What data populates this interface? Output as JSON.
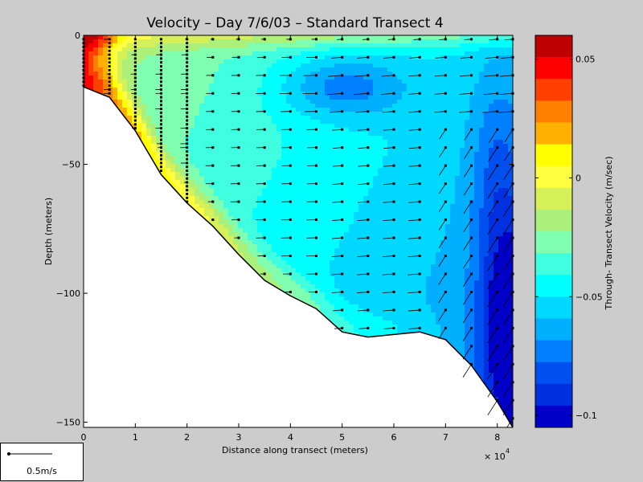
{
  "chart_data": {
    "type": "heatmap",
    "title": "Velocity – Day 7/6/03 – Standard Transect 4",
    "xlabel": "Distance along transect (meters)",
    "ylabel": "Depth (meters)",
    "x_multiplier_label": "× 10",
    "x_multiplier_exponent": "4",
    "xlim": [
      0,
      83000
    ],
    "ylim": [
      -152,
      0
    ],
    "x_ticks": [
      "0",
      "1",
      "2",
      "3",
      "4",
      "5",
      "6",
      "7",
      "8"
    ],
    "y_ticks": [
      "0",
      "−50",
      "−100",
      "−150"
    ],
    "colorbar": {
      "label": "Through- Transect Velocity (m/sec)",
      "range": [
        -0.105,
        0.06
      ],
      "ticks": [
        "0.05",
        "0",
        "−0.05",
        "−0.1"
      ],
      "colors": [
        "#bf0000",
        "#ff0000",
        "#ff4000",
        "#ff8000",
        "#ffb000",
        "#ffff00",
        "#ffff40",
        "#d6f05a",
        "#aaf07a",
        "#80ffb0",
        "#40ffe0",
        "#00ffff",
        "#00d8ff",
        "#00b0ff",
        "#0080ff",
        "#0050f0",
        "#0030e0",
        "#0000c8"
      ]
    },
    "seafloor": {
      "distance_m": [
        0,
        5000,
        10000,
        15000,
        20000,
        25000,
        30000,
        35000,
        40000,
        45000,
        50000,
        55000,
        60000,
        65000,
        70000,
        75000,
        80000,
        83000
      ],
      "depth_m": [
        -20,
        -24,
        -37,
        -54,
        -65,
        -74,
        -85,
        -95,
        -101,
        -106,
        -115,
        -117,
        -116,
        -115,
        -118,
        -128,
        -142,
        -152
      ]
    },
    "station_distances_m": [
      0,
      5000,
      10000,
      15000,
      20000,
      25000,
      30000,
      35000,
      40000,
      45000,
      50000,
      55000,
      60000,
      65000,
      70000,
      75000,
      80000,
      83000
    ],
    "velocity_regions": [
      {
        "velocity": 0.055,
        "distance_m": [
          0,
          2000,
          4500,
          4000,
          0
        ]
      },
      {
        "velocity": 0.005,
        "distance_m": [
          0,
          8000,
          6000,
          0
        ]
      },
      {
        "velocity": -0.02,
        "distance_m": [
          5000,
          30000,
          40000
        ]
      },
      {
        "velocity": -0.055,
        "distance_m": [
          33000,
          55000,
          75000
        ]
      },
      {
        "velocity": -0.075,
        "distance_m": [
          35000,
          69000
        ]
      },
      {
        "velocity": -0.095,
        "distance_m": [
          82000
        ]
      }
    ]
  },
  "scale_legend": {
    "label": "0.5m/s"
  }
}
